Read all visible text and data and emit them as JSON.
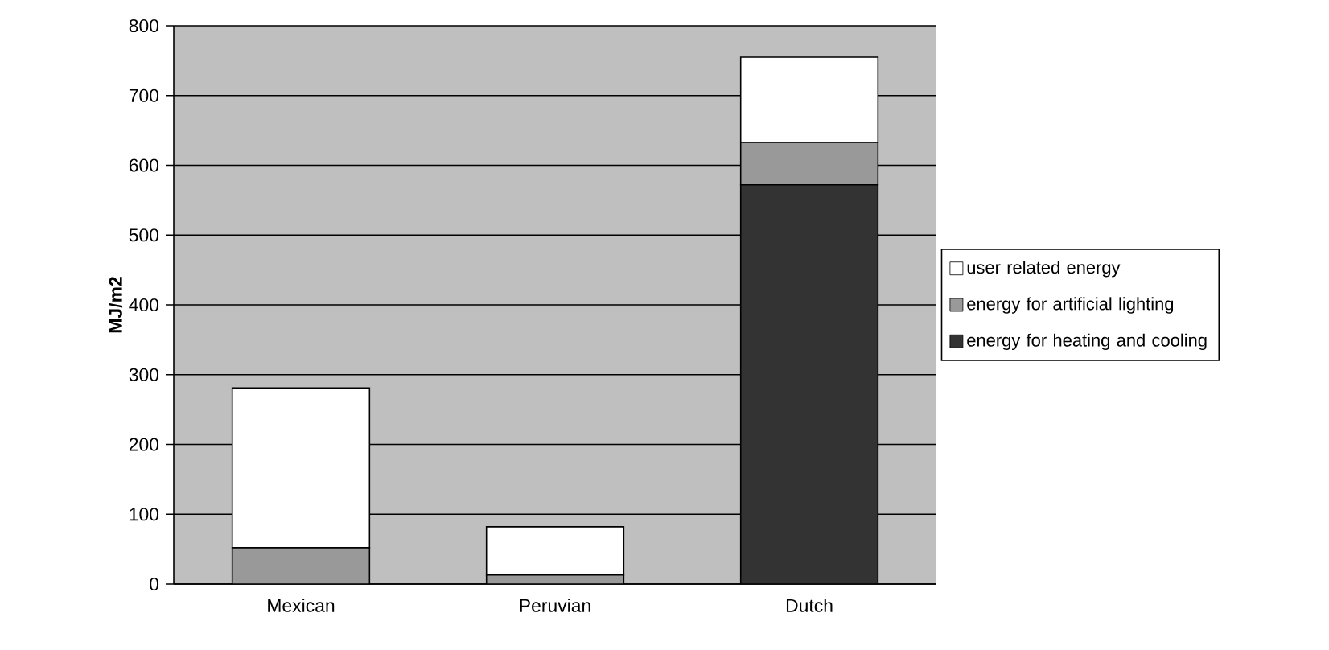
{
  "chart_data": {
    "type": "bar",
    "stacked": true,
    "ylabel": "MJ/m2",
    "categories": [
      "Mexican",
      "Peruvian",
      "Dutch"
    ],
    "series": [
      {
        "name": "energy for heating and cooling",
        "color": "#333333",
        "values": [
          0,
          0,
          572
        ]
      },
      {
        "name": "energy for artificial lighting",
        "color": "#999999",
        "values": [
          52,
          13,
          61
        ]
      },
      {
        "name": "user related energy",
        "color": "#ffffff",
        "values": [
          229,
          69,
          122
        ]
      }
    ],
    "ylim": [
      0,
      800
    ],
    "yticks": [
      0,
      100,
      200,
      300,
      400,
      500,
      600,
      700,
      800
    ],
    "grid": "y",
    "legend": "right"
  }
}
